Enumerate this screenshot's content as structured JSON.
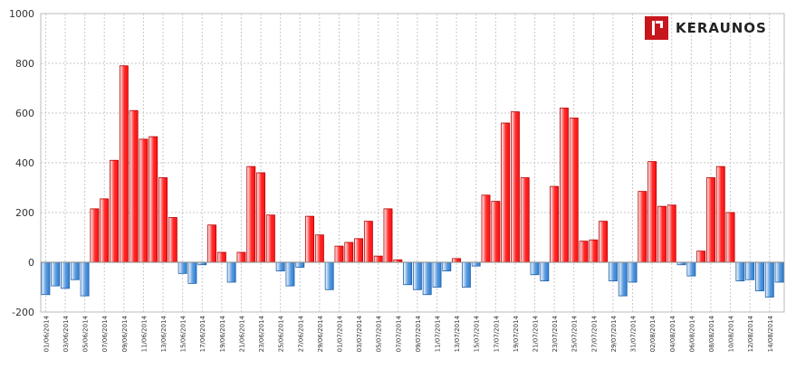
{
  "logo": {
    "text": "KERAUNOS"
  },
  "colors": {
    "positive_fill": "#ff1a1a",
    "positive_light": "#ffffff",
    "positive_stroke": "#b30000",
    "negative_fill": "#3d8ad8",
    "negative_light": "#ffffff",
    "negative_stroke": "#1f5fa8",
    "grid": "#c8c8c8"
  },
  "chart_data": {
    "type": "bar",
    "title": "",
    "xlabel": "",
    "ylabel": "",
    "ylim": [
      -200,
      1000
    ],
    "yticks": [
      -200,
      0,
      200,
      400,
      600,
      800,
      1000
    ],
    "grid": true,
    "x_tick_labels": [
      "01/06/2014",
      "03/06/2014",
      "05/06/2014",
      "07/06/2014",
      "09/06/2014",
      "11/06/2014",
      "13/06/2014",
      "15/06/2014",
      "17/06/2014",
      "19/06/2014",
      "21/06/2014",
      "23/06/2014",
      "25/06/2014",
      "27/06/2014",
      "29/06/2014",
      "01/07/2014",
      "03/07/2014",
      "05/07/2014",
      "07/07/2014",
      "09/07/2014",
      "11/07/2014",
      "13/07/2014",
      "15/07/2014",
      "17/07/2014",
      "19/07/2014",
      "21/07/2014",
      "23/07/2014",
      "25/07/2014",
      "27/07/2014",
      "29/07/2014",
      "31/07/2014",
      "02/08/2014",
      "04/08/2014",
      "06/08/2014",
      "08/08/2014",
      "10/08/2014",
      "12/08/2014",
      "14/08/2014"
    ],
    "categories": [
      "01/06/2014",
      "02/06/2014",
      "03/06/2014",
      "04/06/2014",
      "05/06/2014",
      "06/06/2014",
      "07/06/2014",
      "08/06/2014",
      "09/06/2014",
      "10/06/2014",
      "11/06/2014",
      "12/06/2014",
      "13/06/2014",
      "14/06/2014",
      "15/06/2014",
      "16/06/2014",
      "17/06/2014",
      "18/06/2014",
      "19/06/2014",
      "20/06/2014",
      "21/06/2014",
      "22/06/2014",
      "23/06/2014",
      "24/06/2014",
      "25/06/2014",
      "26/06/2014",
      "27/06/2014",
      "28/06/2014",
      "29/06/2014",
      "30/06/2014",
      "01/07/2014",
      "02/07/2014",
      "03/07/2014",
      "04/07/2014",
      "05/07/2014",
      "06/07/2014",
      "07/07/2014",
      "08/07/2014",
      "09/07/2014",
      "10/07/2014",
      "11/07/2014",
      "12/07/2014",
      "13/07/2014",
      "14/07/2014",
      "15/07/2014",
      "16/07/2014",
      "17/07/2014",
      "18/07/2014",
      "19/07/2014",
      "20/07/2014",
      "21/07/2014",
      "22/07/2014",
      "23/07/2014",
      "24/07/2014",
      "25/07/2014",
      "26/07/2014",
      "27/07/2014",
      "28/07/2014",
      "29/07/2014",
      "30/07/2014",
      "31/07/2014",
      "01/08/2014",
      "02/08/2014",
      "03/08/2014",
      "04/08/2014",
      "05/08/2014",
      "06/08/2014",
      "07/08/2014",
      "08/08/2014",
      "09/08/2014",
      "10/08/2014",
      "11/08/2014",
      "12/08/2014",
      "13/08/2014",
      "14/08/2014",
      "15/08/2014"
    ],
    "values": [
      -130,
      -95,
      -105,
      -70,
      -135,
      215,
      255,
      410,
      790,
      610,
      495,
      505,
      340,
      180,
      -45,
      -85,
      -10,
      150,
      40,
      -80,
      40,
      385,
      360,
      190,
      -35,
      -95,
      -20,
      185,
      110,
      -110,
      65,
      80,
      95,
      165,
      25,
      215,
      10,
      -90,
      -110,
      -130,
      -100,
      -35,
      15,
      -100,
      -15,
      270,
      245,
      560,
      605,
      340,
      -50,
      -75,
      305,
      620,
      580,
      85,
      90,
      165,
      -75,
      -135,
      -80,
      285,
      405,
      225,
      230,
      -10,
      -55,
      45,
      340,
      385,
      200,
      -75,
      -70,
      -115,
      -140,
      -80
    ]
  }
}
